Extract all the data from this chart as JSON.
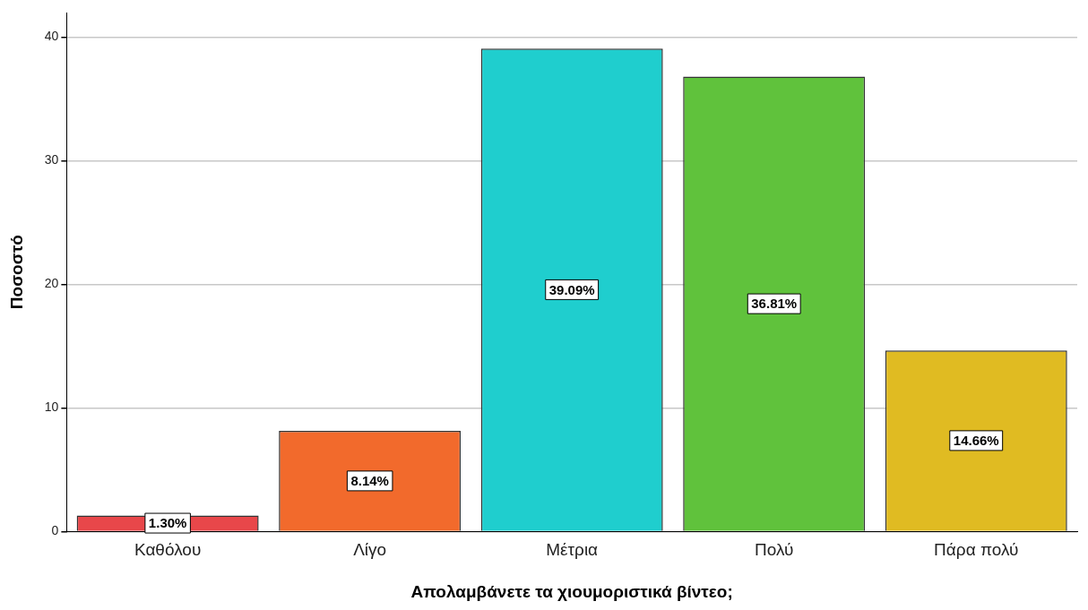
{
  "chart_data": {
    "type": "bar",
    "xlabel": "Απολαμβάνετε τα χιουμοριστικά βίντεο;",
    "ylabel": "Ποσοστό",
    "categories": [
      "Καθόλου",
      "Λίγο",
      "Μέτρια",
      "Πολύ",
      "Πάρα πολύ"
    ],
    "values": [
      1.3,
      8.14,
      39.09,
      36.81,
      14.66
    ],
    "colors": [
      "#e8474a",
      "#f26a2c",
      "#1fcece",
      "#60c23c",
      "#e0bb22"
    ],
    "value_labels": [
      "1.30%",
      "8.14%",
      "39.09%",
      "36.81%",
      "14.66%"
    ],
    "ylim": [
      0,
      42
    ],
    "yticks": [
      0,
      10,
      20,
      30,
      40
    ],
    "grid": "y",
    "legend": false
  }
}
